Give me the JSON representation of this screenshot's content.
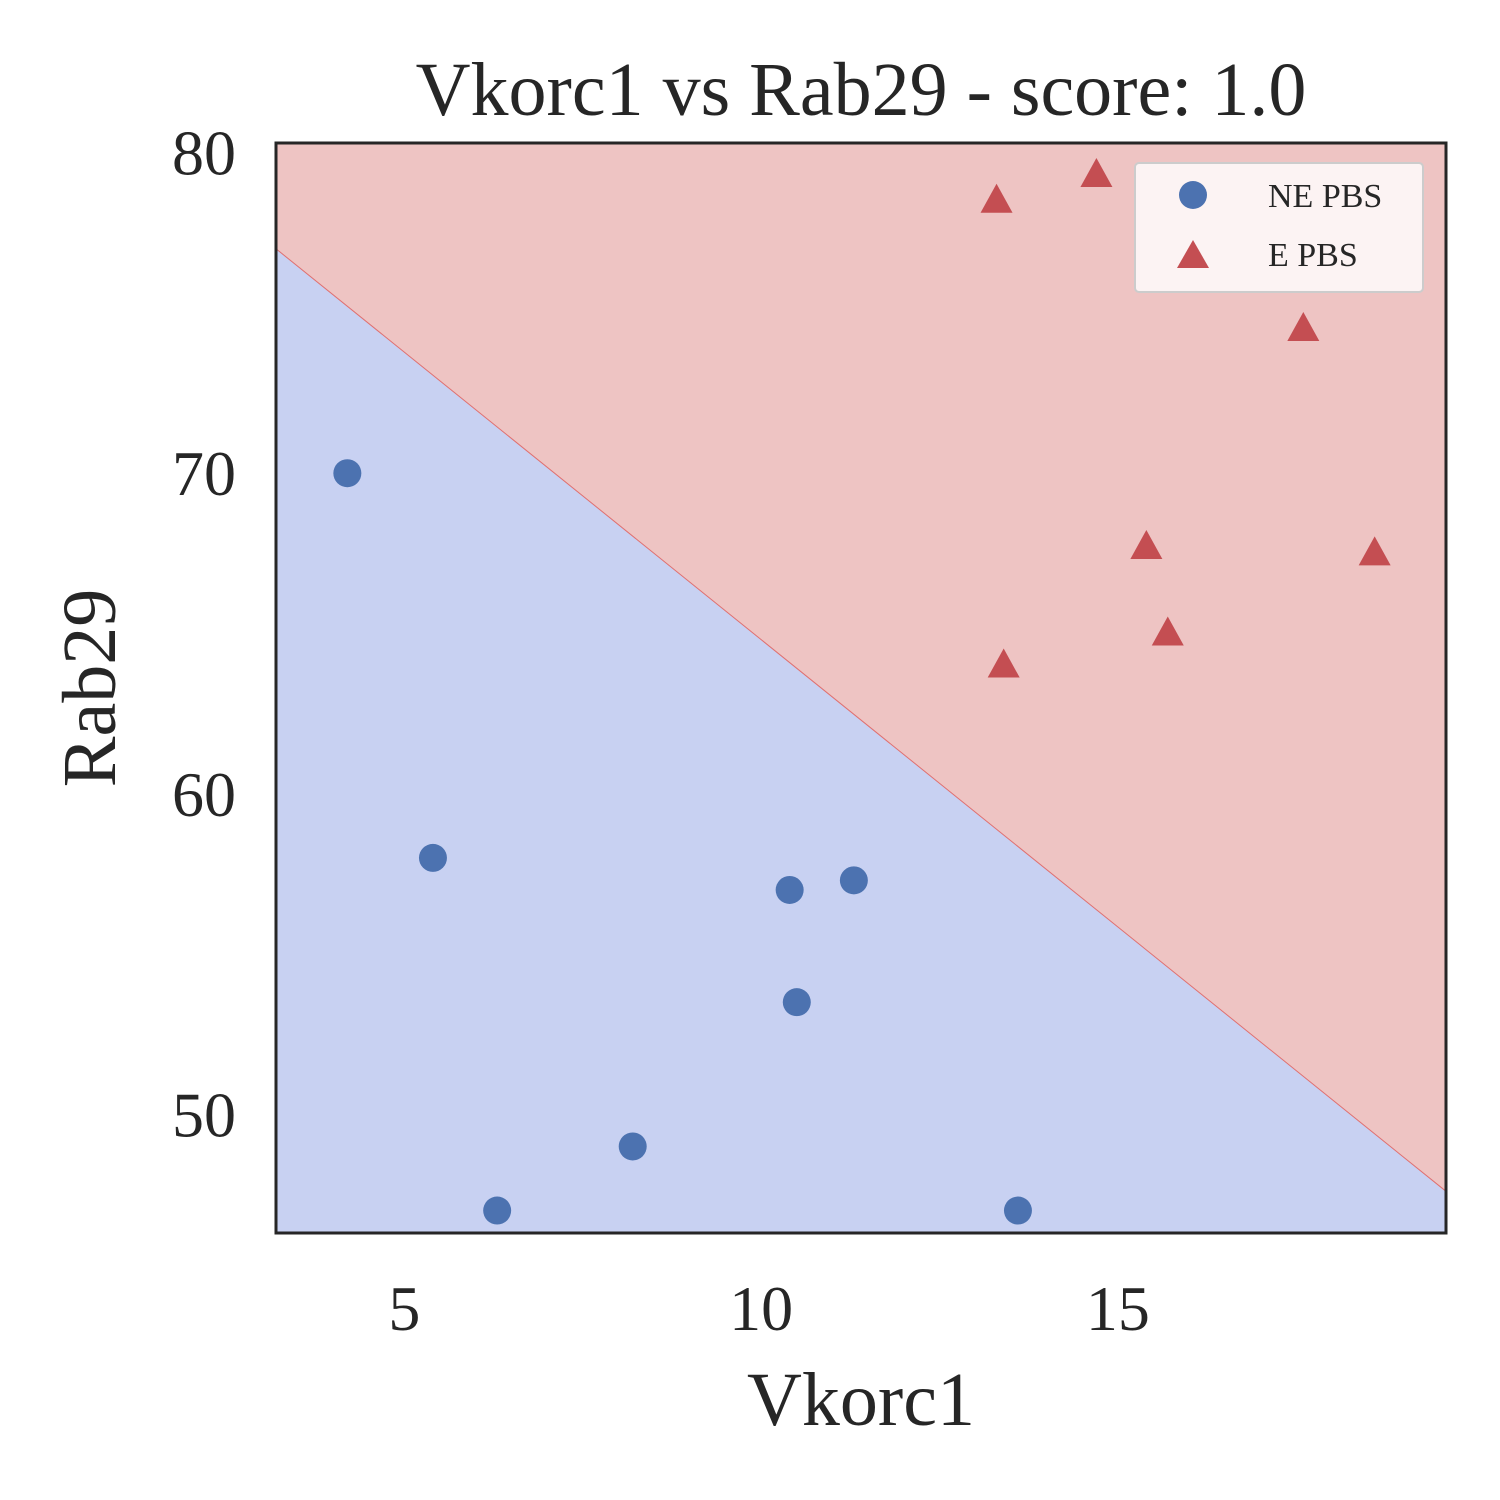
{
  "chart_data": {
    "type": "scatter",
    "title": "Vkorc1 vs Rab29 - score: 1.0",
    "xlabel": "Vkorc1",
    "ylabel": "Rab29",
    "xlim": [
      3.2,
      19.6
    ],
    "ylim": [
      46.3,
      80.3
    ],
    "xticks": [
      5,
      10,
      15
    ],
    "yticks": [
      50,
      60,
      70,
      80
    ],
    "grid": false,
    "legend_position": "top-right",
    "decision_boundary": {
      "points": [
        [
          3.2,
          77.0
        ],
        [
          19.6,
          47.6
        ]
      ],
      "region_above_series": "E PBS",
      "region_below_series": "NE PBS"
    },
    "colors": {
      "NE PBS": "#4c72b0",
      "E PBS": "#c44e52",
      "region_NE": "#c8d1f2",
      "region_E": "#eec4c3",
      "boundary": "#e07070",
      "frame": "#262626"
    },
    "series": [
      {
        "name": "NE PBS",
        "marker": "circle",
        "x": [
          4.2,
          5.4,
          6.3,
          8.2,
          10.4,
          10.5,
          11.3,
          13.6
        ],
        "y": [
          70.0,
          58.0,
          47.0,
          49.0,
          57.0,
          53.5,
          57.3,
          47.0
        ]
      },
      {
        "name": "E PBS",
        "marker": "triangle",
        "x": [
          13.3,
          13.4,
          14.7,
          15.4,
          15.7,
          17.6,
          18.6
        ],
        "y": [
          78.5,
          64.0,
          79.3,
          67.7,
          65.0,
          74.5,
          67.5
        ]
      }
    ]
  }
}
